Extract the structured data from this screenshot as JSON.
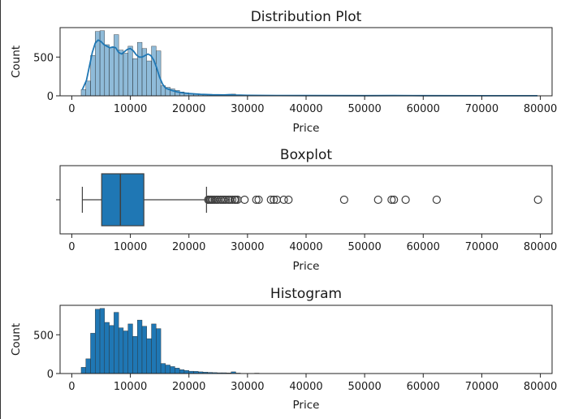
{
  "chart_data": [
    {
      "type": "bar",
      "subtype": "histogram-with-kde",
      "title": "Distribution Plot",
      "xlabel": "Price",
      "ylabel": "Count",
      "xlim": [
        -2000,
        82000
      ],
      "ylim": [
        0,
        880
      ],
      "xticks": [
        0,
        10000,
        20000,
        30000,
        40000,
        50000,
        60000,
        70000,
        80000
      ],
      "yticks": [
        0,
        500
      ],
      "grid": false,
      "color": "#1f77b4",
      "bin_width": 800,
      "bins": [
        {
          "x": 1600,
          "count": 80
        },
        {
          "x": 2400,
          "count": 190
        },
        {
          "x": 3200,
          "count": 520
        },
        {
          "x": 4000,
          "count": 830
        },
        {
          "x": 4800,
          "count": 840
        },
        {
          "x": 5600,
          "count": 660
        },
        {
          "x": 6400,
          "count": 620
        },
        {
          "x": 7200,
          "count": 790
        },
        {
          "x": 8000,
          "count": 590
        },
        {
          "x": 8800,
          "count": 550
        },
        {
          "x": 9600,
          "count": 640
        },
        {
          "x": 10400,
          "count": 480
        },
        {
          "x": 11200,
          "count": 690
        },
        {
          "x": 12000,
          "count": 610
        },
        {
          "x": 12800,
          "count": 450
        },
        {
          "x": 13600,
          "count": 640
        },
        {
          "x": 14400,
          "count": 580
        },
        {
          "x": 15200,
          "count": 130
        },
        {
          "x": 16000,
          "count": 110
        },
        {
          "x": 16800,
          "count": 90
        },
        {
          "x": 17600,
          "count": 70
        },
        {
          "x": 18400,
          "count": 50
        },
        {
          "x": 19200,
          "count": 40
        },
        {
          "x": 20000,
          "count": 30
        },
        {
          "x": 20800,
          "count": 28
        },
        {
          "x": 21600,
          "count": 22
        },
        {
          "x": 22400,
          "count": 18
        },
        {
          "x": 23200,
          "count": 15
        },
        {
          "x": 24000,
          "count": 12
        },
        {
          "x": 24800,
          "count": 10
        },
        {
          "x": 25600,
          "count": 10
        },
        {
          "x": 26400,
          "count": 8
        },
        {
          "x": 27200,
          "count": 22
        },
        {
          "x": 28000,
          "count": 6
        },
        {
          "x": 30400,
          "count": 3
        },
        {
          "x": 31200,
          "count": 5
        },
        {
          "x": 34400,
          "count": 2
        },
        {
          "x": 36800,
          "count": 1
        },
        {
          "x": 46400,
          "count": 1
        },
        {
          "x": 52000,
          "count": 1
        },
        {
          "x": 54400,
          "count": 2
        },
        {
          "x": 56800,
          "count": 1
        },
        {
          "x": 62400,
          "count": 1
        },
        {
          "x": 79200,
          "count": 1
        }
      ],
      "kde": {
        "x": [
          1800,
          2500,
          3000,
          3500,
          4000,
          4500,
          5000,
          5500,
          6000,
          6500,
          7000,
          7500,
          8000,
          8500,
          9000,
          9500,
          10000,
          10500,
          11000,
          11500,
          12000,
          12500,
          13000,
          13500,
          14000,
          14500,
          15000,
          15500,
          16000,
          17000,
          18000,
          19000,
          20000,
          22000,
          24000,
          26000,
          27000,
          28000,
          30000,
          35000,
          40000,
          50000,
          55000,
          60000,
          70000,
          79500
        ],
        "y": [
          80,
          200,
          380,
          560,
          680,
          720,
          700,
          660,
          640,
          620,
          630,
          620,
          560,
          540,
          570,
          600,
          610,
          580,
          530,
          500,
          500,
          520,
          540,
          520,
          460,
          360,
          240,
          150,
          100,
          70,
          50,
          38,
          30,
          20,
          14,
          12,
          16,
          10,
          6,
          4,
          3,
          2,
          3,
          2,
          1,
          1
        ]
      }
    },
    {
      "type": "box",
      "title": "Boxplot",
      "xlabel": "Price",
      "xlim": [
        -2000,
        82000
      ],
      "xticks": [
        0,
        10000,
        20000,
        30000,
        40000,
        50000,
        60000,
        70000,
        80000
      ],
      "whisker_low": 1800,
      "q1": 5100,
      "median": 8300,
      "q3": 12300,
      "whisker_high": 23000,
      "outliers": [
        23300,
        23500,
        23700,
        23900,
        24100,
        24400,
        24700,
        25000,
        25400,
        25700,
        26000,
        26300,
        26700,
        27000,
        27400,
        27800,
        28000,
        28300,
        29500,
        31500,
        31900,
        34000,
        34500,
        35000,
        36200,
        37000,
        46500,
        52300,
        54600,
        55000,
        57000,
        62300,
        79600
      ],
      "color": "#1f77b4"
    },
    {
      "type": "bar",
      "subtype": "histogram",
      "title": "Histogram",
      "xlabel": "Price",
      "ylabel": "Count",
      "xlim": [
        -2000,
        82000
      ],
      "ylim": [
        0,
        880
      ],
      "xticks": [
        0,
        10000,
        20000,
        30000,
        40000,
        50000,
        60000,
        70000,
        80000
      ],
      "yticks": [
        0,
        500
      ],
      "grid": false,
      "color": "#1f77b4",
      "bin_width": 800,
      "bins": [
        {
          "x": 1600,
          "count": 80
        },
        {
          "x": 2400,
          "count": 190
        },
        {
          "x": 3200,
          "count": 520
        },
        {
          "x": 4000,
          "count": 830
        },
        {
          "x": 4800,
          "count": 840
        },
        {
          "x": 5600,
          "count": 660
        },
        {
          "x": 6400,
          "count": 620
        },
        {
          "x": 7200,
          "count": 790
        },
        {
          "x": 8000,
          "count": 590
        },
        {
          "x": 8800,
          "count": 550
        },
        {
          "x": 9600,
          "count": 640
        },
        {
          "x": 10400,
          "count": 480
        },
        {
          "x": 11200,
          "count": 690
        },
        {
          "x": 12000,
          "count": 610
        },
        {
          "x": 12800,
          "count": 450
        },
        {
          "x": 13600,
          "count": 640
        },
        {
          "x": 14400,
          "count": 580
        },
        {
          "x": 15200,
          "count": 130
        },
        {
          "x": 16000,
          "count": 110
        },
        {
          "x": 16800,
          "count": 90
        },
        {
          "x": 17600,
          "count": 70
        },
        {
          "x": 18400,
          "count": 50
        },
        {
          "x": 19200,
          "count": 40
        },
        {
          "x": 20000,
          "count": 30
        },
        {
          "x": 20800,
          "count": 28
        },
        {
          "x": 21600,
          "count": 22
        },
        {
          "x": 22400,
          "count": 18
        },
        {
          "x": 23200,
          "count": 15
        },
        {
          "x": 24000,
          "count": 12
        },
        {
          "x": 24800,
          "count": 10
        },
        {
          "x": 25600,
          "count": 10
        },
        {
          "x": 26400,
          "count": 8
        },
        {
          "x": 27200,
          "count": 22
        },
        {
          "x": 28000,
          "count": 6
        },
        {
          "x": 30400,
          "count": 3
        },
        {
          "x": 31200,
          "count": 5
        },
        {
          "x": 34400,
          "count": 2
        },
        {
          "x": 36800,
          "count": 1
        },
        {
          "x": 46400,
          "count": 1
        },
        {
          "x": 52000,
          "count": 1
        },
        {
          "x": 54400,
          "count": 2
        },
        {
          "x": 56800,
          "count": 1
        },
        {
          "x": 62400,
          "count": 1
        },
        {
          "x": 79200,
          "count": 1
        }
      ]
    }
  ]
}
